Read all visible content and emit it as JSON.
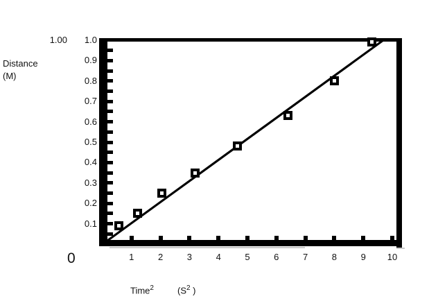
{
  "chart": {
    "y_axis": {
      "title_line1": "Distance",
      "title_line2": "(M)",
      "extra_top_label": "1.00",
      "tick_labels": [
        "1.0",
        "0.9",
        "0.8",
        "0.7",
        "0.6",
        "0.5",
        "0.4",
        "0.3",
        "0.2",
        "0.1"
      ],
      "origin_label": "0"
    },
    "x_axis": {
      "tick_labels": [
        "1",
        "2",
        "3",
        "4",
        "5",
        "6",
        "7",
        "8",
        "9",
        "10"
      ],
      "title_main": "Time",
      "title_sup": "2",
      "unit_open": "(S",
      "unit_sup": "2",
      "unit_close": " )"
    }
  },
  "chart_data": {
    "type": "scatter",
    "title": "",
    "xlabel": "Time^2 (S^2)",
    "ylabel": "Distance (M)",
    "xlim": [
      0,
      10
    ],
    "ylim": [
      0,
      1.0
    ],
    "x_ticks": [
      1,
      2,
      3,
      4,
      5,
      6,
      7,
      8,
      9,
      10
    ],
    "y_ticks": [
      0.1,
      0.2,
      0.3,
      0.4,
      0.5,
      0.6,
      0.7,
      0.8,
      0.9,
      1.0
    ],
    "y_minor_tick_step": 0.05,
    "points": [
      [
        0.57,
        0.09
      ],
      [
        1.2,
        0.15
      ],
      [
        2.05,
        0.25
      ],
      [
        3.2,
        0.35
      ],
      [
        4.65,
        0.48
      ],
      [
        6.4,
        0.63
      ],
      [
        8.0,
        0.8
      ],
      [
        9.3,
        0.99
      ]
    ],
    "fit_line": {
      "x1": 0,
      "y1": 0,
      "x2": 9.69,
      "y2": 1.0
    },
    "marker_style": "open-square",
    "legend": null,
    "grid": false,
    "colors": {
      "ink": "#000000",
      "shadow": "#c9c9c9",
      "background": "#ffffff"
    }
  }
}
